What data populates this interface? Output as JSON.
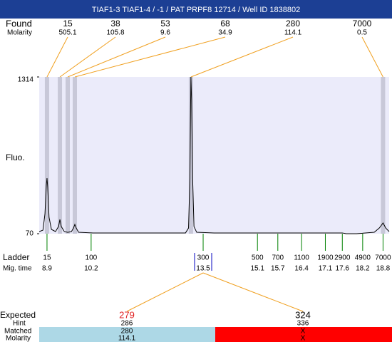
{
  "chart_data": {
    "type": "line",
    "title": "TIAF1-3  TIAF1-4 / -1 / PAT PRPF8 12714 / Well ID 1838802",
    "title_background": "#1c3f94",
    "y_label": "Fluo.",
    "xlim": [
      8.67,
      18.98
    ],
    "ylim": [
      70,
      1314
    ],
    "yticks": [
      70,
      1314
    ],
    "plot_fill": "#ebebfa",
    "x": [
      8.67,
      8.78,
      8.84,
      8.88,
      8.9,
      8.92,
      8.96,
      9.03,
      9.15,
      9.24,
      9.28,
      9.32,
      9.41,
      9.51,
      9.62,
      9.68,
      9.72,
      9.76,
      9.83,
      10.25,
      11.72,
      12.98,
      13.07,
      13.11,
      13.13,
      13.14,
      13.16,
      13.19,
      13.23,
      13.31,
      13.82,
      15.92,
      17.6,
      17.71,
      18.02,
      18.54,
      18.69,
      18.8,
      18.88,
      18.98
    ],
    "series": [
      {
        "color": "#000000",
        "values": [
          87,
          98,
          228,
          455,
          511,
          443,
          200,
          104,
          87,
          127,
          183,
          127,
          87,
          81,
          87,
          115,
          144,
          115,
          81,
          76,
          76,
          76,
          115,
          511,
          1077,
          1314,
          1133,
          511,
          127,
          81,
          76,
          76,
          76,
          70,
          70,
          81,
          115,
          155,
          115,
          87
        ]
      }
    ],
    "found": {
      "label": "Found",
      "molarity_label": "Molarity",
      "band_color": "#c8c8d8",
      "line_color": "#f0a020",
      "peaks": [
        {
          "size": 15,
          "molarity": 505.1,
          "time": 8.9
        },
        {
          "size": 38,
          "molarity": 105.8,
          "time": 9.28
        },
        {
          "size": 53,
          "molarity": 9.6,
          "time": 9.51
        },
        {
          "size": 68,
          "molarity": 34.9,
          "time": 9.72
        },
        {
          "size": 280,
          "molarity": 114.1,
          "time": 13.14
        },
        {
          "size": 7000,
          "molarity": 0.5,
          "time": 18.8
        }
      ]
    },
    "ladder": {
      "label": "Ladder",
      "time_label": "Mig. time",
      "color": "#008000",
      "sizes": [
        15,
        100,
        300,
        500,
        700,
        1100,
        1900,
        2900,
        4900,
        7000
      ],
      "times": [
        8.9,
        10.2,
        13.5,
        15.1,
        15.7,
        16.4,
        17.1,
        17.6,
        18.2,
        18.8
      ]
    },
    "expected": {
      "label": "Expected",
      "hint_label": "Hint",
      "matched_label": "Matched",
      "molarity_label": "Molarity",
      "columns": [
        {
          "expected": 279,
          "hint": 286,
          "matched": 280,
          "molarity": 114.1,
          "text_color": "#e02020",
          "match_color": "#add8e6"
        },
        {
          "expected": 324,
          "hint": 336,
          "matched": "X",
          "molarity": "X",
          "text_color": "#000000",
          "match_color": "#ff0000"
        }
      ]
    }
  }
}
